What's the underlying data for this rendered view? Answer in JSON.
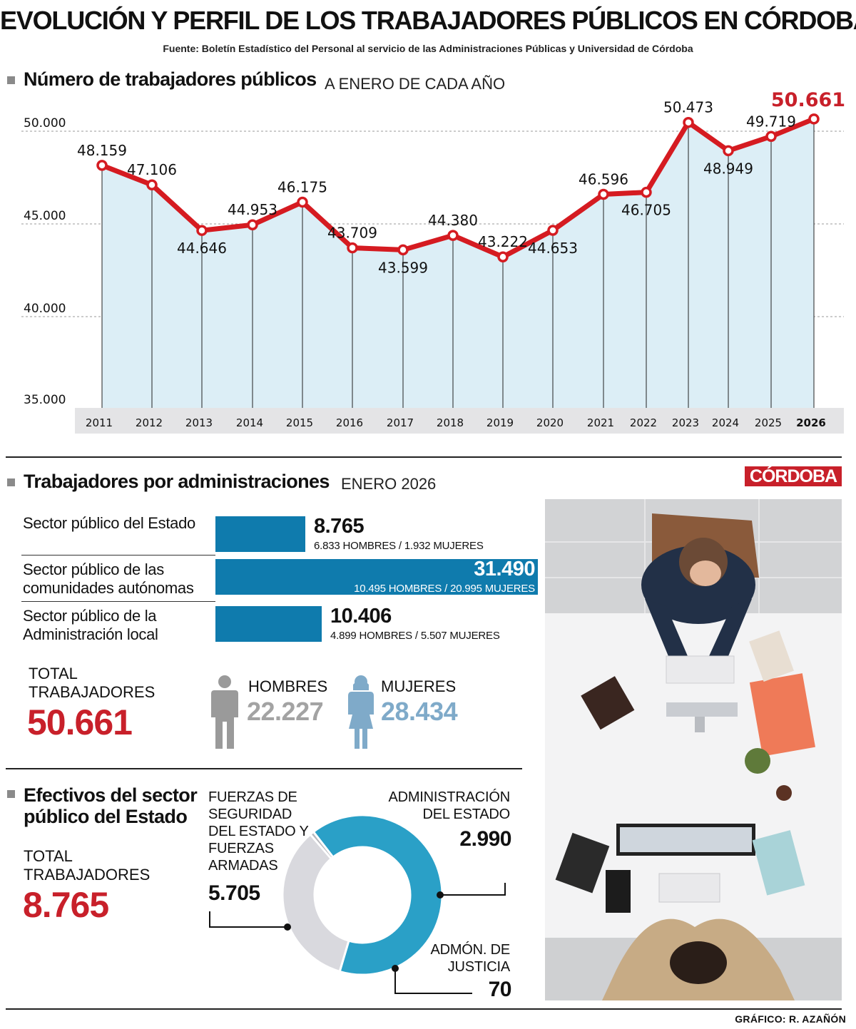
{
  "title": "EVOLUCIÓN Y PERFIL DE LOS TRABAJADORES PÚBLICOS EN CÓRDOBA",
  "source": "Fuente: Boletín Estadístico del Personal al servicio de las Administraciones Públicas y Universidad de Córdoba",
  "brand_label": "CÓRDOBA",
  "credit": "GRÁFICO: R. AZAÑÓN",
  "colors": {
    "line": "#d51b21",
    "area": "#dceef6",
    "bar": "#0f7bad",
    "highlight": "#c8202a",
    "hombres": "#9a9a9a",
    "mujeres": "#7faac9",
    "donut_fuerzas": "#2aa0c7",
    "donut_admin": "#d9d9de",
    "donut_justicia": "#b8b8bd"
  },
  "section1": {
    "title": "Número de trabajadores públicos",
    "subtitle": "A ENERO DE CADA AÑO"
  },
  "section2": {
    "title": "Trabajadores por administraciones",
    "subtitle": "ENERO 2026",
    "bars": [
      {
        "label": "Sector público del Estado",
        "value": 8765,
        "value_text": "8.765",
        "detail": "6.833 HOMBRES / 1.932 MUJERES"
      },
      {
        "label": "Sector público de las comunidades autónomas",
        "value": 31490,
        "value_text": "31.490",
        "detail": "10.495 HOMBRES / 20.995 MUJERES"
      },
      {
        "label": "Sector público de la Administración local",
        "value": 10406,
        "value_text": "10.406",
        "detail": "4.899 HOMBRES / 5.507 MUJERES"
      }
    ],
    "total_label": "TOTAL TRABAJADORES",
    "total_value": "50.661",
    "hombres": {
      "label": "HOMBRES",
      "value": "22.227",
      "icon": "man-icon"
    },
    "mujeres": {
      "label": "MUJERES",
      "value": "28.434",
      "icon": "woman-icon"
    }
  },
  "section3": {
    "title": "Efectivos del sector público del Estado",
    "total_label": "TOTAL TRABAJADORES",
    "total_value": "8.765",
    "segments": [
      {
        "label": "FUERZAS DE SEGURIDAD DEL ESTADO Y FUERZAS ARMADAS",
        "value": 5705,
        "value_text": "5.705"
      },
      {
        "label": "ADMINISTRACIÓN DEL ESTADO",
        "value": 2990,
        "value_text": "2.990"
      },
      {
        "label": "ADMÓN. DE JUSTICIA",
        "value": 70,
        "value_text": "70"
      }
    ]
  },
  "photo": {
    "icon": "office-workers-photo"
  },
  "chart_data": [
    {
      "type": "area",
      "title": "Número de trabajadores públicos",
      "subtitle": "A ENERO DE CADA AÑO",
      "categories": [
        "2011",
        "2012",
        "2013",
        "2014",
        "2015",
        "2016",
        "2017",
        "2018",
        "2019",
        "2020",
        "2021",
        "2022",
        "2023",
        "2024",
        "2025",
        "2026"
      ],
      "values": [
        48159,
        47106,
        44646,
        44953,
        46175,
        43709,
        43599,
        44380,
        43222,
        44653,
        46596,
        46705,
        50473,
        48949,
        49719,
        50661
      ],
      "value_labels": [
        "48.159",
        "47.106",
        "44.646",
        "44.953",
        "46.175",
        "43.709",
        "43.599",
        "44.380",
        "43.222",
        "44.653",
        "46.596",
        "46.705",
        "50.473",
        "48.949",
        "49.719",
        "50.661"
      ],
      "y_ticks": [
        35000,
        40000,
        45000,
        50000
      ],
      "y_tick_labels": [
        "35.000",
        "40.000",
        "45.000",
        "50.000"
      ],
      "ylim": [
        35000,
        50661
      ],
      "grid": true
    },
    {
      "type": "bar",
      "title": "Trabajadores por administraciones",
      "categories": [
        "Sector público del Estado",
        "Sector público de las comunidades autónomas",
        "Sector público de la Administración local"
      ],
      "values": [
        8765,
        31490,
        10406
      ]
    },
    {
      "type": "pie",
      "title": "Efectivos del sector público del Estado",
      "categories": [
        "FUERZAS DE SEGURIDAD DEL ESTADO Y FUERZAS ARMADAS",
        "ADMINISTRACIÓN DEL ESTADO",
        "ADMÓN. DE JUSTICIA"
      ],
      "values": [
        5705,
        2990,
        70
      ]
    }
  ]
}
